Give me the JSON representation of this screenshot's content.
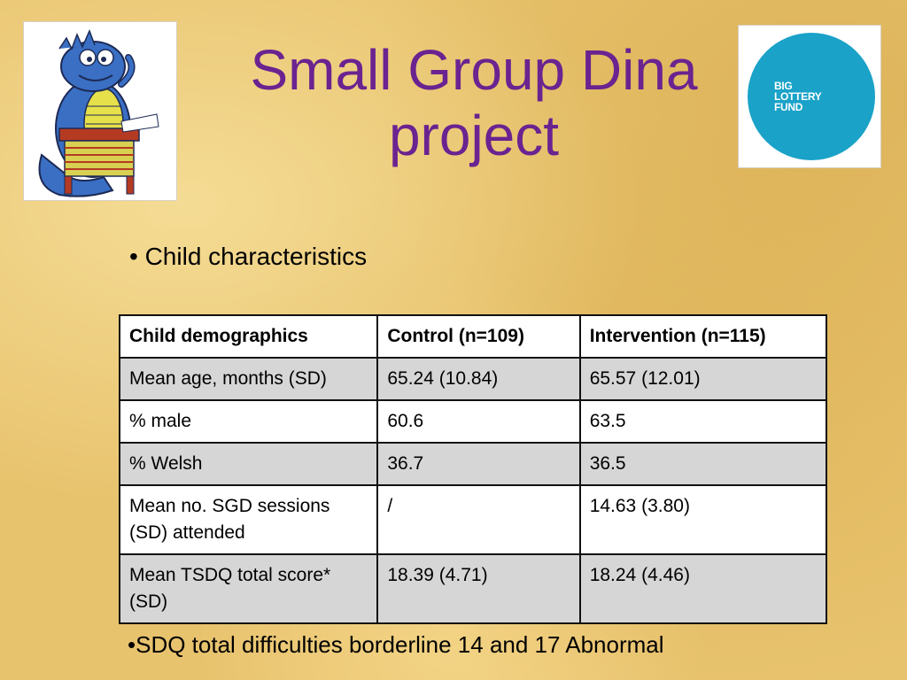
{
  "slide": {
    "title": "Small Group Dina\nproject",
    "bullet_main": "• Child characteristics",
    "footnote": "•SDQ total difficulties borderline 14 and 17 Abnormal"
  },
  "logos": {
    "left": {
      "icon": "dinosaur-at-desk-cartoon"
    },
    "right": {
      "text": "BIG\nLOTTERY\nFUND",
      "color": "#1aa2c8"
    }
  },
  "colors": {
    "title": "#6a2390",
    "background": "#e8c36e",
    "row_shade": "#d6d6d6"
  },
  "table": {
    "headers": [
      "Child demographics",
      "Control (n=109)",
      "Intervention (n=115)"
    ],
    "rows": [
      [
        "Mean age, months (SD)",
        "65.24 (10.84)",
        "65.57 (12.01)"
      ],
      [
        "% male",
        "60.6",
        "63.5"
      ],
      [
        "% Welsh",
        "36.7",
        "36.5"
      ],
      [
        "Mean no. SGD sessions (SD) attended",
        "/",
        "14.63 (3.80)"
      ],
      [
        "Mean TSDQ total score* (SD)",
        "18.39 (4.71)",
        "18.24 (4.46)"
      ]
    ]
  }
}
